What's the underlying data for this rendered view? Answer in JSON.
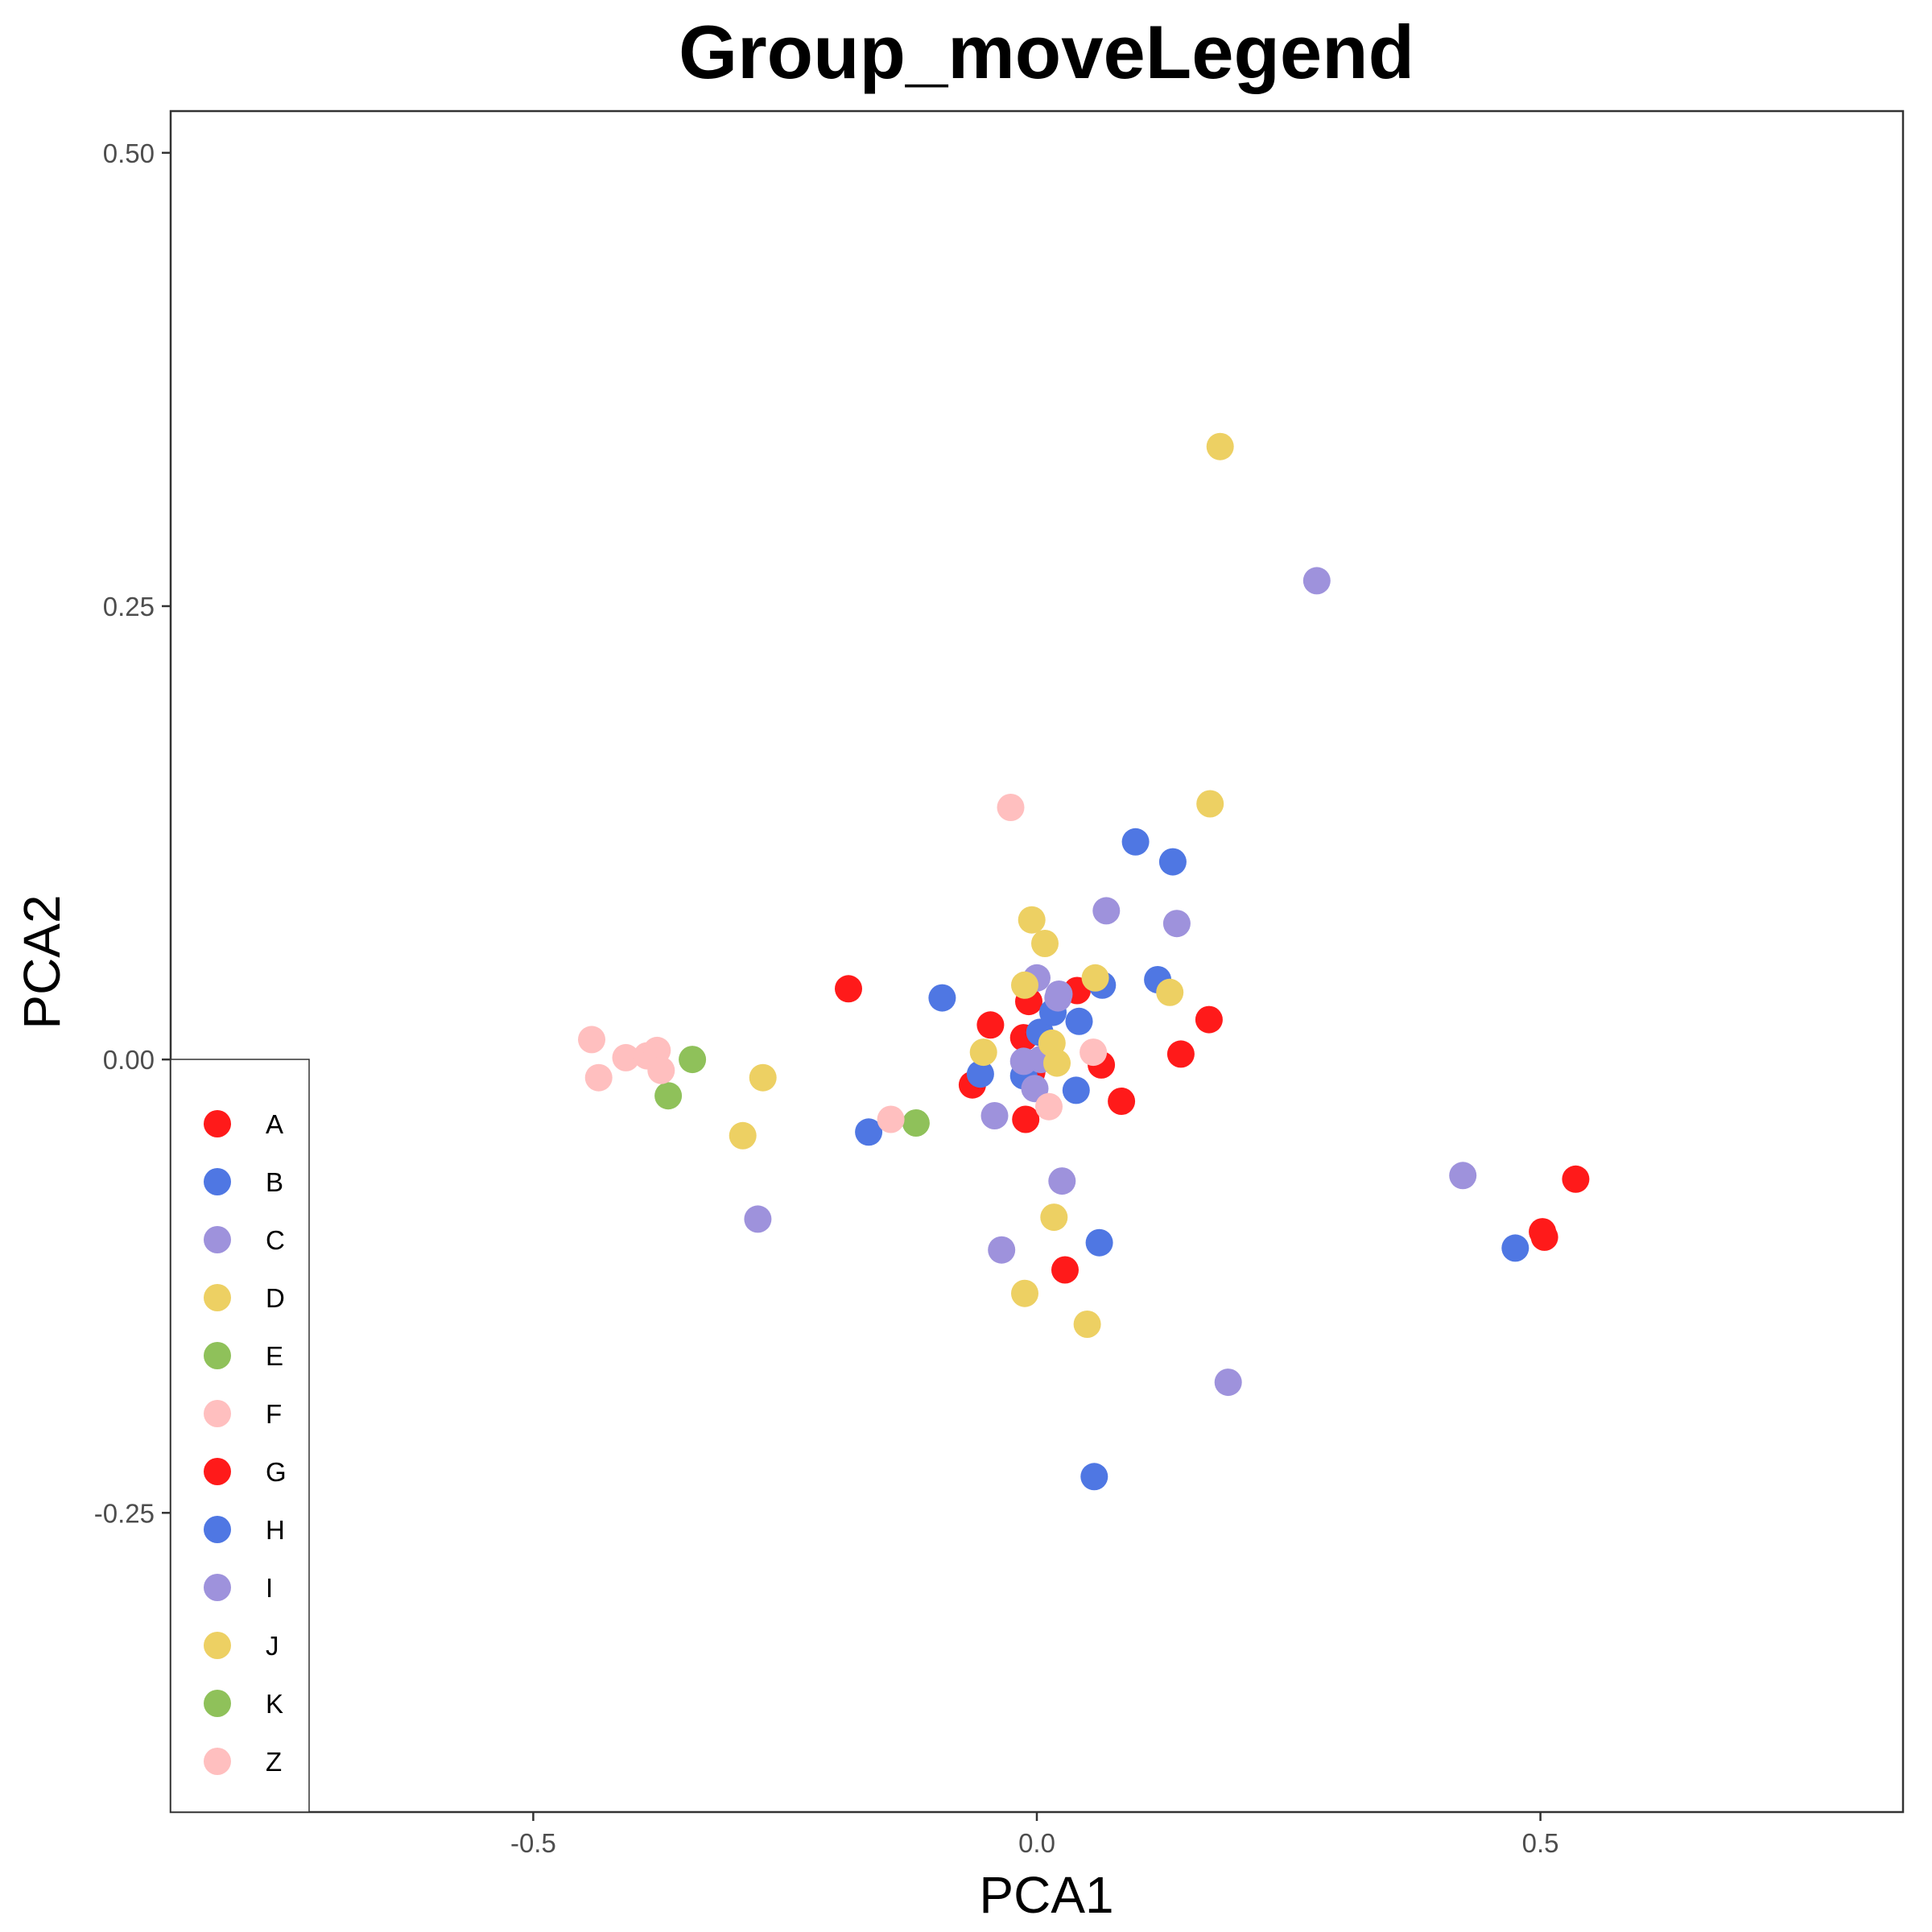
{
  "colors": {
    "A": "#FF1A1A",
    "B": "#4F77E3",
    "C": "#9E92DC",
    "D": "#EDD063",
    "E": "#8FC15A",
    "F": "#FFBFBF",
    "G": "#FF1A1A",
    "H": "#4F77E3",
    "I": "#9E92DC",
    "J": "#EDD063",
    "K": "#8FC15A",
    "Z": "#FFBFBF"
  },
  "chart_data": {
    "type": "scatter",
    "title": "Group_moveLegend",
    "xlabel": "PCA1",
    "ylabel": "PCA2",
    "xlim": [
      -0.86,
      0.86
    ],
    "ylim": [
      -0.415,
      0.523
    ],
    "x_ticks": [
      -0.5,
      0.0,
      0.5
    ],
    "x_tick_labels": [
      "-0.5",
      "0.0",
      "0.5"
    ],
    "y_ticks": [
      0.5,
      0.25,
      0.0,
      -0.25
    ],
    "y_tick_labels": [
      "0.50",
      "0.25",
      "0.00",
      "-0.25"
    ],
    "grid": false,
    "legend": {
      "position": "bottom-left-inside",
      "entries": [
        "A",
        "B",
        "C",
        "D",
        "E",
        "F",
        "G",
        "H",
        "I",
        "J",
        "K",
        "Z"
      ]
    },
    "series": [
      {
        "name": "A",
        "points": [
          [
            -0.187,
            0.039
          ],
          [
            -0.046,
            0.019
          ],
          [
            -0.013,
            0.012
          ],
          [
            -0.008,
            0.032
          ],
          [
            0.04,
            0.038
          ],
          [
            -0.064,
            -0.014
          ],
          [
            -0.011,
            -0.033
          ],
          [
            0.084,
            -0.023
          ],
          [
            0.535,
            -0.066
          ]
        ]
      },
      {
        "name": "G",
        "points": [
          [
            0.171,
            0.022
          ],
          [
            0.143,
            0.003
          ],
          [
            0.064,
            -0.003
          ],
          [
            -0.005,
            -0.007
          ],
          [
            0.028,
            -0.116
          ],
          [
            0.502,
            -0.095
          ],
          [
            0.504,
            -0.098
          ]
        ]
      },
      {
        "name": "B",
        "points": [
          [
            -0.094,
            0.034
          ],
          [
            -0.056,
            -0.008
          ],
          [
            0.003,
            0.015
          ],
          [
            0.042,
            0.021
          ],
          [
            0.065,
            0.041
          ],
          [
            0.12,
            0.044
          ],
          [
            -0.167,
            -0.04
          ],
          [
            0.062,
            -0.101
          ]
        ]
      },
      {
        "name": "H",
        "points": [
          [
            0.098,
            0.12
          ],
          [
            0.135,
            0.109
          ],
          [
            0.016,
            0.026
          ],
          [
            -0.013,
            -0.009
          ],
          [
            0.039,
            -0.017
          ],
          [
            0.475,
            -0.104
          ],
          [
            0.057,
            -0.23
          ]
        ]
      },
      {
        "name": "C",
        "points": [
          [
            0.069,
            0.082
          ],
          [
            0.0,
            0.045
          ],
          [
            0.022,
            0.036
          ],
          [
            -0.013,
            -0.001
          ],
          [
            0.004,
            0.0
          ],
          [
            -0.002,
            -0.016
          ],
          [
            -0.042,
            -0.031
          ],
          [
            0.025,
            -0.067
          ],
          [
            -0.277,
            -0.088
          ]
        ]
      },
      {
        "name": "I",
        "points": [
          [
            0.278,
            0.264
          ],
          [
            0.139,
            0.075
          ],
          [
            0.021,
            0.034
          ],
          [
            0.423,
            -0.064
          ],
          [
            -0.035,
            -0.105
          ],
          [
            0.19,
            -0.178
          ]
        ]
      },
      {
        "name": "D",
        "points": [
          [
            0.182,
            0.338
          ],
          [
            0.172,
            0.141
          ],
          [
            -0.005,
            0.077
          ],
          [
            0.008,
            0.064
          ],
          [
            -0.012,
            0.041
          ],
          [
            0.058,
            0.045
          ],
          [
            0.132,
            0.037
          ],
          [
            0.015,
            0.009
          ]
        ]
      },
      {
        "name": "J",
        "points": [
          [
            -0.053,
            0.004
          ],
          [
            0.02,
            -0.002
          ],
          [
            -0.272,
            -0.01
          ],
          [
            -0.292,
            -0.042
          ],
          [
            0.017,
            -0.087
          ],
          [
            -0.012,
            -0.129
          ],
          [
            0.05,
            -0.146
          ]
        ]
      },
      {
        "name": "E",
        "points": [
          [
            -0.342,
            0.0
          ],
          [
            -0.366,
            -0.02
          ]
        ]
      },
      {
        "name": "K",
        "points": [
          [
            -0.12,
            -0.035
          ]
        ]
      },
      {
        "name": "F",
        "points": [
          [
            -0.442,
            0.011
          ],
          [
            -0.408,
            0.001
          ],
          [
            -0.387,
            0.002
          ],
          [
            -0.377,
            0.005
          ],
          [
            -0.373,
            -0.006
          ]
        ]
      },
      {
        "name": "Z",
        "points": [
          [
            -0.435,
            -0.01
          ],
          [
            -0.026,
            0.139
          ],
          [
            0.056,
            0.004
          ],
          [
            0.012,
            -0.026
          ],
          [
            -0.145,
            -0.033
          ]
        ]
      }
    ]
  }
}
